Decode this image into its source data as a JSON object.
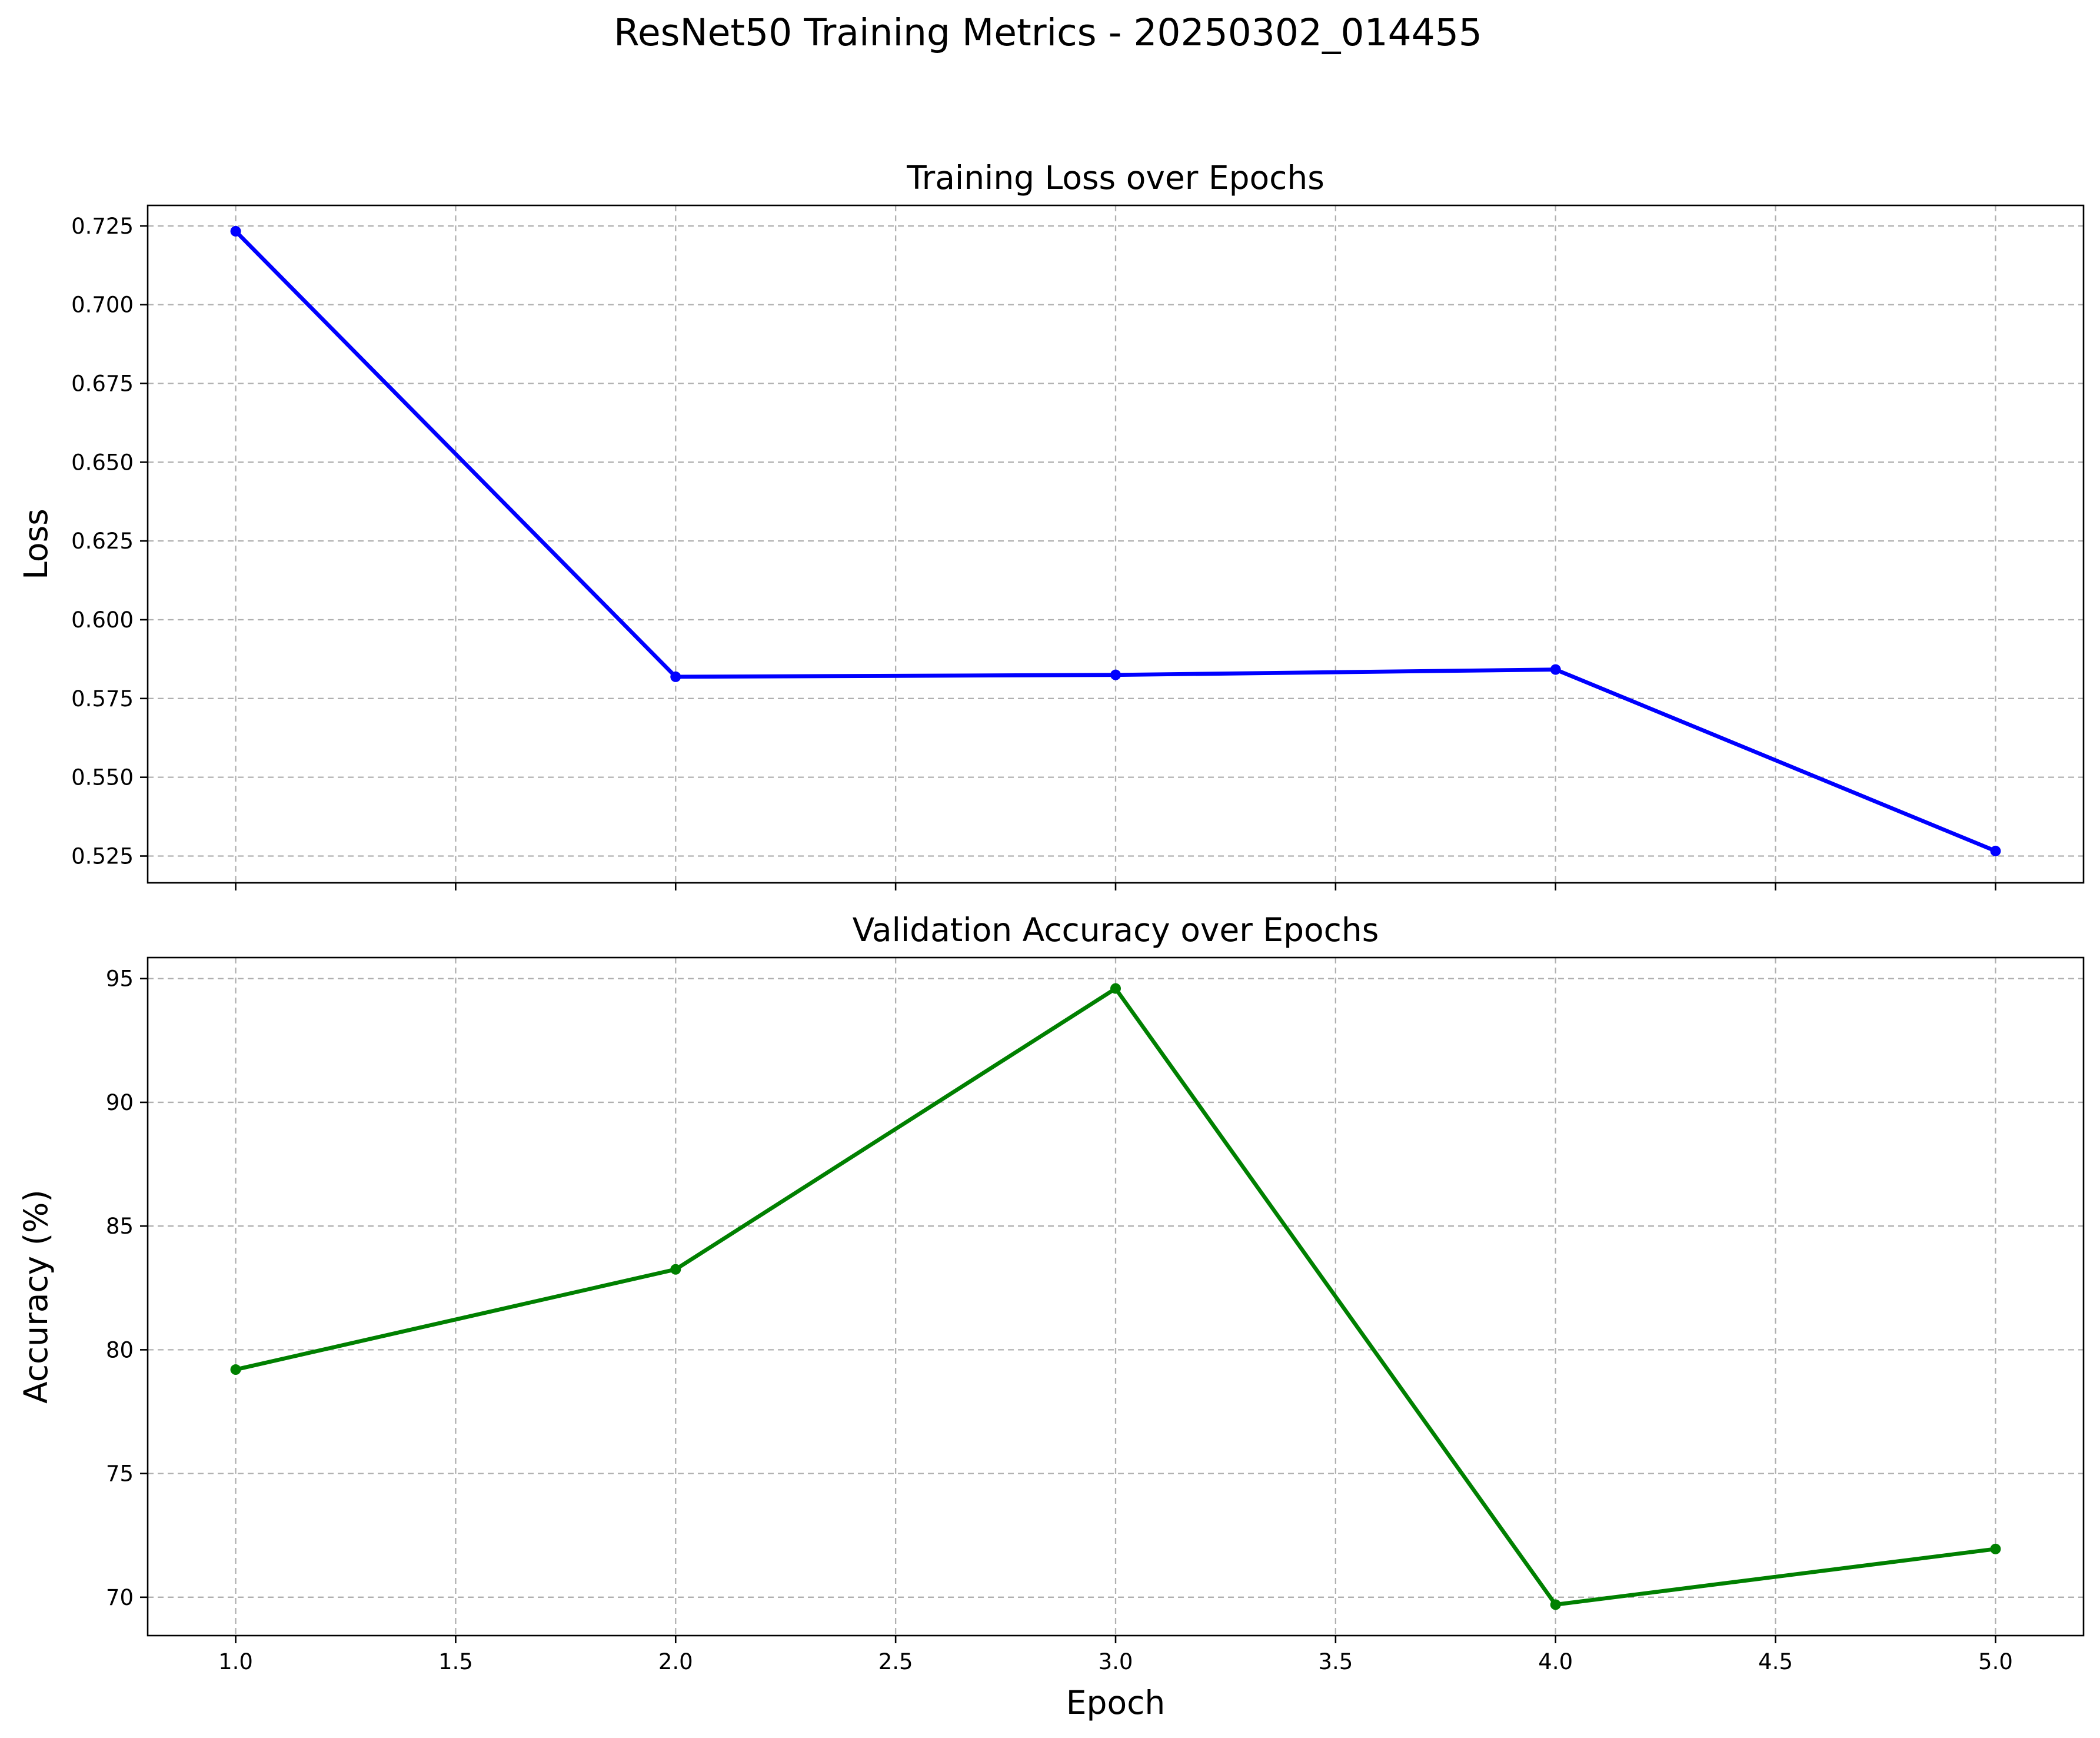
{
  "figure": {
    "suptitle": "ResNet50 Training Metrics - 20250302_014455"
  },
  "chart_data": [
    {
      "type": "line",
      "title": "Training Loss over Epochs",
      "xlabel": "",
      "ylabel": "Loss",
      "x": [
        1,
        2,
        3,
        4,
        5
      ],
      "series": [
        {
          "values": [
            0.7233,
            0.5819,
            0.5825,
            0.5842,
            0.5266
          ],
          "color": "#0000ff",
          "marker": "circle"
        }
      ],
      "xlim": [
        0.8,
        5.2
      ],
      "ylim": [
        0.5165,
        0.7315
      ],
      "xticks": [
        1.0,
        1.5,
        2.0,
        2.5,
        3.0,
        3.5,
        4.0,
        4.5,
        5.0
      ],
      "xtick_labels_visible": false,
      "yticks": [
        0.525,
        0.55,
        0.575,
        0.6,
        0.625,
        0.65,
        0.675,
        0.7,
        0.725
      ],
      "ytick_labels": [
        "0.525",
        "0.550",
        "0.575",
        "0.600",
        "0.625",
        "0.650",
        "0.675",
        "0.700",
        "0.725"
      ],
      "grid": true,
      "legend": "none"
    },
    {
      "type": "line",
      "title": "Validation Accuracy over Epochs",
      "xlabel": "Epoch",
      "ylabel": "Accuracy (%)",
      "x": [
        1,
        2,
        3,
        4,
        5
      ],
      "series": [
        {
          "values": [
            79.2,
            83.25,
            94.6,
            69.7,
            71.95
          ],
          "color": "#008000",
          "marker": "circle"
        }
      ],
      "xlim": [
        0.8,
        5.2
      ],
      "ylim": [
        68.45,
        95.85
      ],
      "xticks": [
        1.0,
        1.5,
        2.0,
        2.5,
        3.0,
        3.5,
        4.0,
        4.5,
        5.0
      ],
      "xtick_labels": [
        "1.0",
        "1.5",
        "2.0",
        "2.5",
        "3.0",
        "3.5",
        "4.0",
        "4.5",
        "5.0"
      ],
      "yticks": [
        70,
        75,
        80,
        85,
        90,
        95
      ],
      "ytick_labels": [
        "70",
        "75",
        "80",
        "85",
        "90",
        "95"
      ],
      "grid": true,
      "legend": "none"
    }
  ]
}
